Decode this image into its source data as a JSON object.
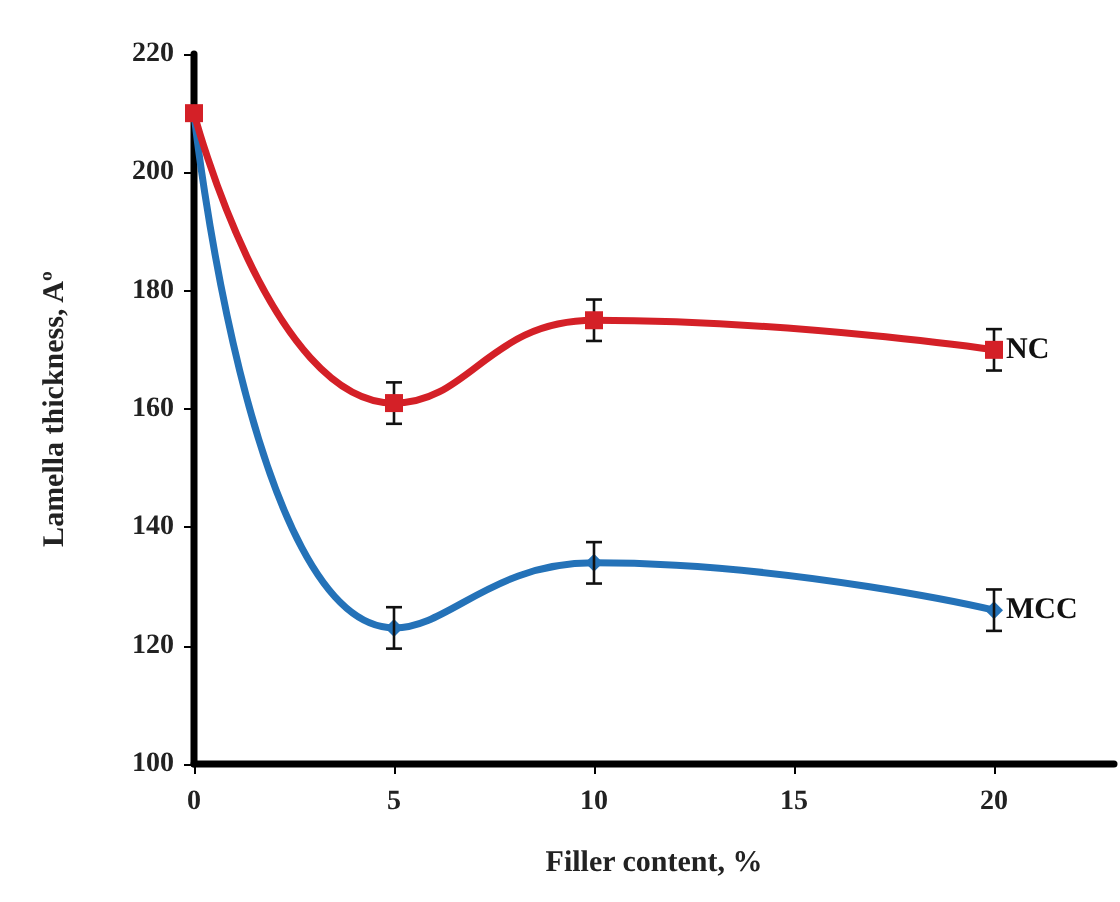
{
  "chart_data": {
    "type": "line",
    "xlabel": "Filler content, %",
    "ylabel": "Lamella thickness, Aº",
    "x": [
      0,
      5,
      10,
      20
    ],
    "series": [
      {
        "name": "NC",
        "color": "#d42027",
        "marker": "square",
        "values": [
          210,
          161,
          175,
          170
        ],
        "errors": [
          null,
          3.5,
          3.5,
          3.5
        ]
      },
      {
        "name": "MCC",
        "color": "#2472b8",
        "marker": "diamond",
        "values": [
          210,
          123,
          134,
          126
        ],
        "errors": [
          null,
          3.5,
          3.5,
          3.5
        ]
      }
    ],
    "xlim": [
      0,
      23
    ],
    "xticks": [
      0,
      5,
      10,
      15,
      20
    ],
    "ylim": [
      100,
      220
    ],
    "yticks": [
      100,
      120,
      140,
      160,
      180,
      200,
      220
    ],
    "grid": false,
    "legend": false
  }
}
